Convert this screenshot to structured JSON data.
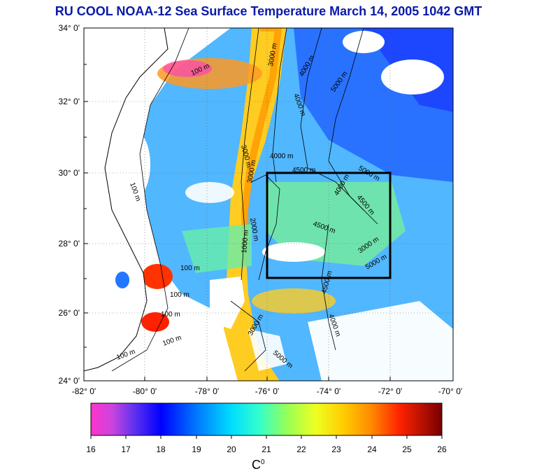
{
  "title": "RU COOL  NOAA-12 Sea Surface Temperature March 14, 2005 1042 GMT",
  "lat_labels": [
    "34° 0'",
    "32° 0'",
    "30° 0'",
    "28° 0'",
    "26° 0'",
    "24° 0'"
  ],
  "lon_labels": [
    "-82° 0'",
    "-80° 0'",
    "-78° 0'",
    "-76° 0'",
    "-74° 0'",
    "-72° 0'",
    "-70° 0'"
  ],
  "colorbar": {
    "ticks": [
      "16",
      "17",
      "18",
      "19",
      "20",
      "21",
      "22",
      "23",
      "24",
      "25",
      "26"
    ],
    "unit_base": "C",
    "unit_sup": "0",
    "colors": [
      "#ff33cc",
      "#8844ee",
      "#0000ff",
      "#0077ff",
      "#00ddff",
      "#55ee88",
      "#ccff33",
      "#ffee00",
      "#ffaa00",
      "#ff2200",
      "#770000"
    ]
  },
  "contour_labels": [
    "100 m",
    "100 m",
    "100 m",
    "100 m",
    "100 m",
    "100 m",
    "100 m",
    "3000 m",
    "4000 m",
    "4000 m",
    "5000 m",
    "3000 m",
    "4000 m",
    "4500 m",
    "5000 m",
    "4000 m",
    "4500 m",
    "4500 m",
    "3000 m",
    "5000 m",
    "4500 m",
    "3000 m",
    "2000 m",
    "1000 m",
    "3000 m",
    "5000 m",
    "4000 m"
  ]
}
